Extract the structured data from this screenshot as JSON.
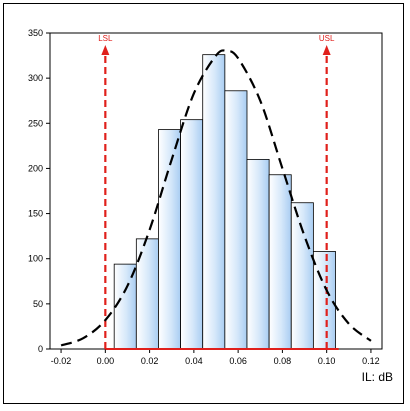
{
  "chart_data": {
    "type": "bar",
    "title": "",
    "xlabel": "IL: dB",
    "ylabel": "",
    "bin_edges": [
      0.004,
      0.014,
      0.024,
      0.034,
      0.044,
      0.054,
      0.064,
      0.074,
      0.084,
      0.094,
      0.104
    ],
    "values": [
      94,
      122,
      243,
      254,
      326,
      286,
      210,
      193,
      162,
      108
    ],
    "xlim": [
      -0.025,
      0.125
    ],
    "ylim": [
      0,
      350
    ],
    "x_ticks": [
      "-0.02",
      "0.00",
      "0.02",
      "0.04",
      "0.06",
      "0.08",
      "0.10",
      "0.12"
    ],
    "y_ticks": [
      "0",
      "50",
      "100",
      "150",
      "200",
      "250",
      "300",
      "350"
    ],
    "grid": false,
    "fit_curve": {
      "style": "dashed",
      "color": "#000000",
      "x": [
        -0.02,
        -0.01,
        0.0,
        0.01,
        0.02,
        0.03,
        0.04,
        0.05,
        0.055,
        0.06,
        0.07,
        0.08,
        0.09,
        0.1,
        0.11,
        0.12
      ],
      "y": [
        4,
        12,
        32,
        70,
        132,
        210,
        283,
        325,
        330,
        322,
        275,
        200,
        125,
        65,
        28,
        9
      ]
    },
    "spec_limits": [
      {
        "name": "LSL",
        "x": 0.0,
        "color": "#e0201c"
      },
      {
        "name": "USL",
        "x": 0.1,
        "color": "#e0201c"
      }
    ],
    "bar_fill": "#c8e0f8",
    "bar_stroke": "#000000"
  }
}
